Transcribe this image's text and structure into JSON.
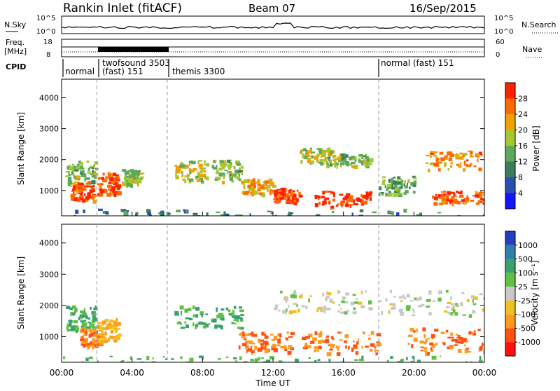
{
  "header": {
    "title": "Rankin Inlet (fitACF)",
    "beam": "Beam 07",
    "date": "16/Sep/2015"
  },
  "top_panels": {
    "nsky_label": "N.Sky",
    "nsky_ticks": [
      "10^5",
      "10^0"
    ],
    "nsearch_label": "N.Search",
    "nsearch_ticks": [
      "10^5",
      "10^0"
    ],
    "freq_label": "Freq.",
    "freq_unit": "[MHz]",
    "freq_ticks": [
      "18",
      "8"
    ],
    "nave_label": "Nave",
    "nave_ticks": [
      "60",
      "0"
    ],
    "cpid_label": "CPID",
    "cpid_segments": [
      {
        "label": "normal",
        "start": "00:00"
      },
      {
        "label": "twofsound 3503",
        "start": "02:00"
      },
      {
        "label": "(fast) 151",
        "start": "02:00"
      },
      {
        "label": "themis 3300",
        "start": "06:00"
      },
      {
        "label": "normal (fast) 151",
        "start": "18:00"
      }
    ]
  },
  "power_panel": {
    "ylabel": "Slant Range [km]",
    "yticks": [
      "1000",
      "2000",
      "3000",
      "4000"
    ],
    "colorbar_label": "Power [dB]",
    "colorbar_ticks": [
      "4",
      "8",
      "12",
      "16",
      "20",
      "24",
      "28"
    ],
    "colorbar_colors": [
      "#1414ff",
      "#2a4fb0",
      "#3c7e5a",
      "#5ea85a",
      "#a5c832",
      "#f0a000",
      "#ff6a00",
      "#ff2000"
    ]
  },
  "velocity_panel": {
    "ylabel": "Slant Range [km]",
    "yticks": [
      "1000",
      "2000",
      "3000",
      "4000"
    ],
    "colorbar_label": "Velocity [m s⁻¹]",
    "colorbar_ticks": [
      "1000",
      "500",
      "100",
      "25",
      "-25",
      "-100",
      "-500",
      "-1000"
    ],
    "colorbar_colors": [
      "#2040c0",
      "#2f7fa8",
      "#3aa070",
      "#60c040",
      "#c8c8c8",
      "#f0c020",
      "#ff9a20",
      "#ff5010",
      "#ff1010"
    ]
  },
  "xaxis": {
    "label": "Time UT",
    "ticks": [
      "00:00",
      "04:00",
      "08:00",
      "12:00",
      "16:00",
      "20:00",
      "00:00"
    ]
  },
  "chart_data": {
    "type": "heatmap",
    "title": "Rankin Inlet (fitACF)",
    "xlabel": "Time UT",
    "ylabel": "Slant Range [km]",
    "xlim_hours": [
      0,
      24
    ],
    "ylim_km": [
      180,
      4600
    ],
    "mode_change_hours": [
      2,
      6,
      18
    ],
    "power_blobs": [
      {
        "t0": 0.2,
        "t1": 1.9,
        "r0": 1200,
        "r1": 2000,
        "level": 14
      },
      {
        "t0": 0.5,
        "t1": 1.8,
        "r0": 700,
        "r1": 1300,
        "level": 26
      },
      {
        "t0": 2.0,
        "t1": 3.2,
        "r0": 900,
        "r1": 1600,
        "level": 26
      },
      {
        "t0": 3.4,
        "t1": 4.5,
        "r0": 1200,
        "r1": 1700,
        "level": 16
      },
      {
        "t0": 6.4,
        "t1": 8.2,
        "r0": 1300,
        "r1": 2000,
        "level": 16
      },
      {
        "t0": 8.5,
        "t1": 10.2,
        "r0": 1300,
        "r1": 2000,
        "level": 14
      },
      {
        "t0": 10.2,
        "t1": 12.0,
        "r0": 900,
        "r1": 1400,
        "level": 20
      },
      {
        "t0": 12.0,
        "t1": 13.5,
        "r0": 600,
        "r1": 1100,
        "level": 26
      },
      {
        "t0": 13.5,
        "t1": 15.5,
        "r0": 1900,
        "r1": 2400,
        "level": 16
      },
      {
        "t0": 14.2,
        "t1": 17.5,
        "r0": 500,
        "r1": 1000,
        "level": 28
      },
      {
        "t0": 15.0,
        "t1": 17.5,
        "r0": 1800,
        "r1": 2200,
        "level": 14
      },
      {
        "t0": 18.0,
        "t1": 20.0,
        "r0": 900,
        "r1": 1500,
        "level": 12
      },
      {
        "t0": 20.5,
        "t1": 23.8,
        "r0": 1700,
        "r1": 2300,
        "level": 22
      },
      {
        "t0": 21.0,
        "t1": 24.0,
        "r0": 600,
        "r1": 1000,
        "level": 26
      },
      {
        "t0": 0.0,
        "t1": 24.0,
        "r0": 180,
        "r1": 420,
        "level": 8
      }
    ],
    "velocity_blobs": [
      {
        "t0": 0.2,
        "t1": 1.9,
        "r0": 1200,
        "r1": 2000,
        "level": 100
      },
      {
        "t0": 1.0,
        "t1": 2.2,
        "r0": 700,
        "r1": 1300,
        "level": -500
      },
      {
        "t0": 2.0,
        "t1": 3.2,
        "r0": 900,
        "r1": 1600,
        "level": -100
      },
      {
        "t0": 6.4,
        "t1": 10.2,
        "r0": 1300,
        "r1": 2000,
        "level": 100
      },
      {
        "t0": 10.0,
        "t1": 13.0,
        "r0": 500,
        "r1": 1200,
        "level": -500
      },
      {
        "t0": 12.0,
        "t1": 17.5,
        "r0": 1800,
        "r1": 2500,
        "level": 0
      },
      {
        "t0": 13.5,
        "t1": 18.0,
        "r0": 500,
        "r1": 1200,
        "level": -500
      },
      {
        "t0": 18.0,
        "t1": 24.0,
        "r0": 1700,
        "r1": 2500,
        "level": 0
      },
      {
        "t0": 19.5,
        "t1": 24.0,
        "r0": 500,
        "r1": 1300,
        "level": -500
      },
      {
        "t0": 0.0,
        "t1": 24.0,
        "r0": 180,
        "r1": 400,
        "level": 100
      }
    ]
  }
}
